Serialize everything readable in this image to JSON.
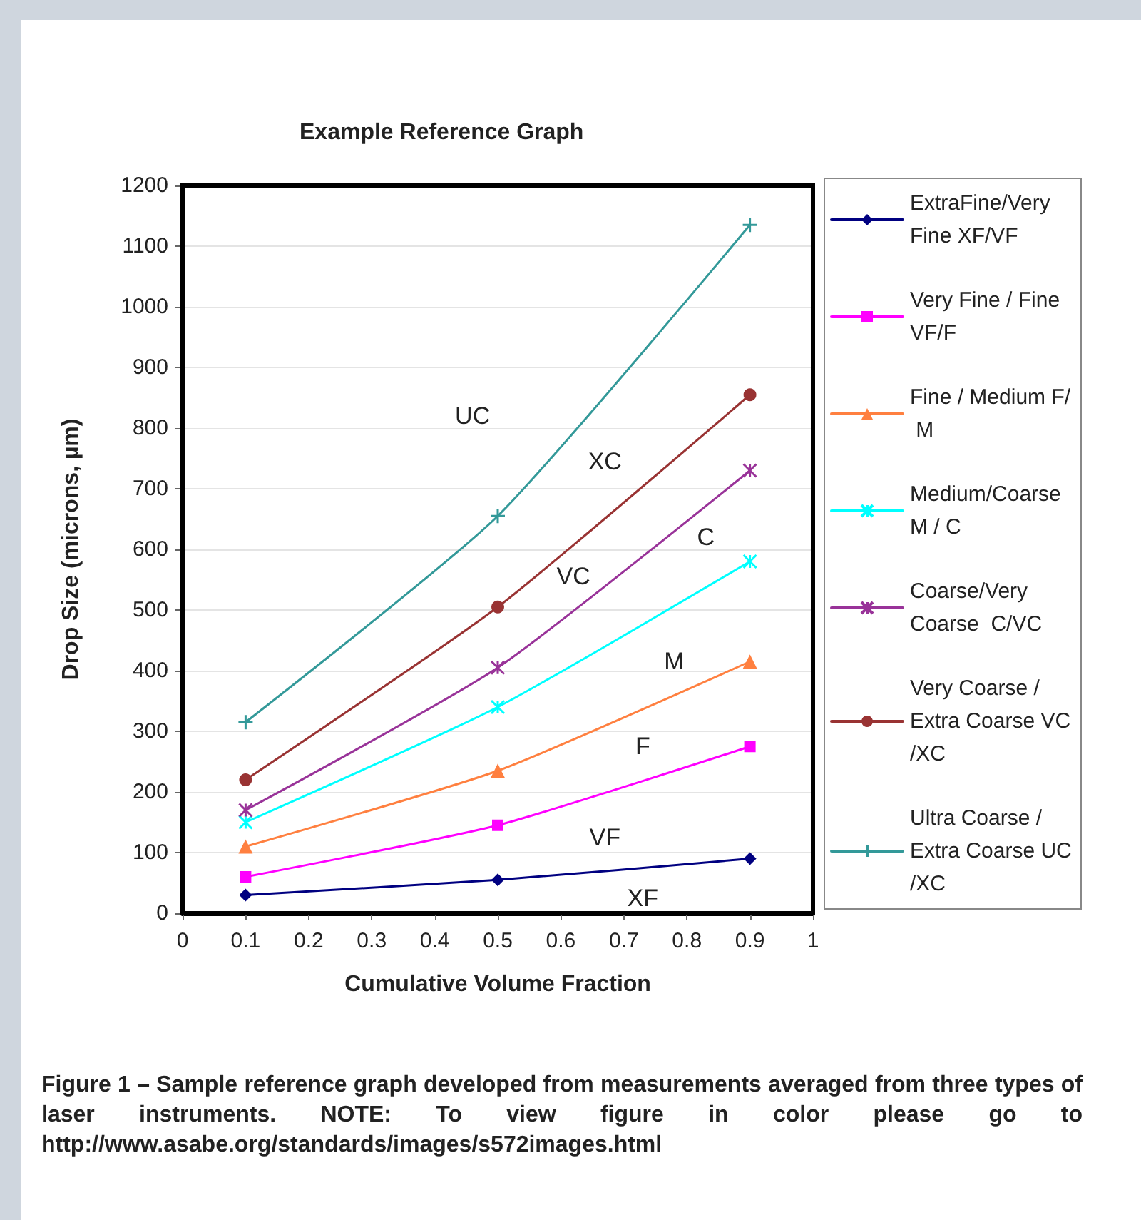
{
  "chart_data": {
    "type": "line",
    "title": "Example Reference Graph",
    "xlabel": "Cumulative Volume Fraction",
    "ylabel": "Drop Size (microns, µm)",
    "x": [
      0.1,
      0.5,
      0.9
    ],
    "series": [
      {
        "name": "ExtraFine/Very Fine XF/VF",
        "color": "#000080",
        "marker": "diamond",
        "values": [
          30,
          55,
          90
        ]
      },
      {
        "name": "Very Fine / Fine  VF/F",
        "color": "#ff00ff",
        "marker": "square",
        "values": [
          60,
          145,
          275
        ]
      },
      {
        "name": "Fine / Medium F/ M",
        "color": "#ff8040",
        "marker": "triangle",
        "values": [
          110,
          235,
          415
        ]
      },
      {
        "name": "Medium/Coarse M / C",
        "color": "#00ffff",
        "marker": "cross",
        "values": [
          150,
          340,
          580
        ]
      },
      {
        "name": "Coarse/Very Coarse  C/VC",
        "color": "#993399",
        "marker": "cross",
        "values": [
          170,
          405,
          730
        ]
      },
      {
        "name": "Very Coarse /Extra Coarse VC/XC",
        "color": "#993333",
        "marker": "circle",
        "values": [
          220,
          505,
          855
        ]
      },
      {
        "name": "Ultra Coarse /Extra Coarse UC/XC",
        "color": "#339999",
        "marker": "plus",
        "values": [
          315,
          655,
          1135
        ]
      }
    ],
    "xlim": [
      0,
      1
    ],
    "xticks": [
      0,
      0.1,
      0.2,
      0.3,
      0.4,
      0.5,
      0.6,
      0.7,
      0.8,
      0.9,
      1
    ],
    "ylim": [
      0,
      1200
    ],
    "yticks": [
      0,
      100,
      200,
      300,
      400,
      500,
      600,
      700,
      800,
      900,
      1000,
      1100,
      1200
    ],
    "grid": "y",
    "legend": "right",
    "line_style": "solid",
    "annotations": [
      "UC",
      "XC",
      "VC",
      "C",
      "M",
      "F",
      "VF",
      "XF",
      "Figure 1 – Sample reference graph developed from measurements averaged from three types of laser instruments. NOTE: To view figure in color please go to http://www.asabe.org/standards/images/s572images.html"
    ]
  }
}
